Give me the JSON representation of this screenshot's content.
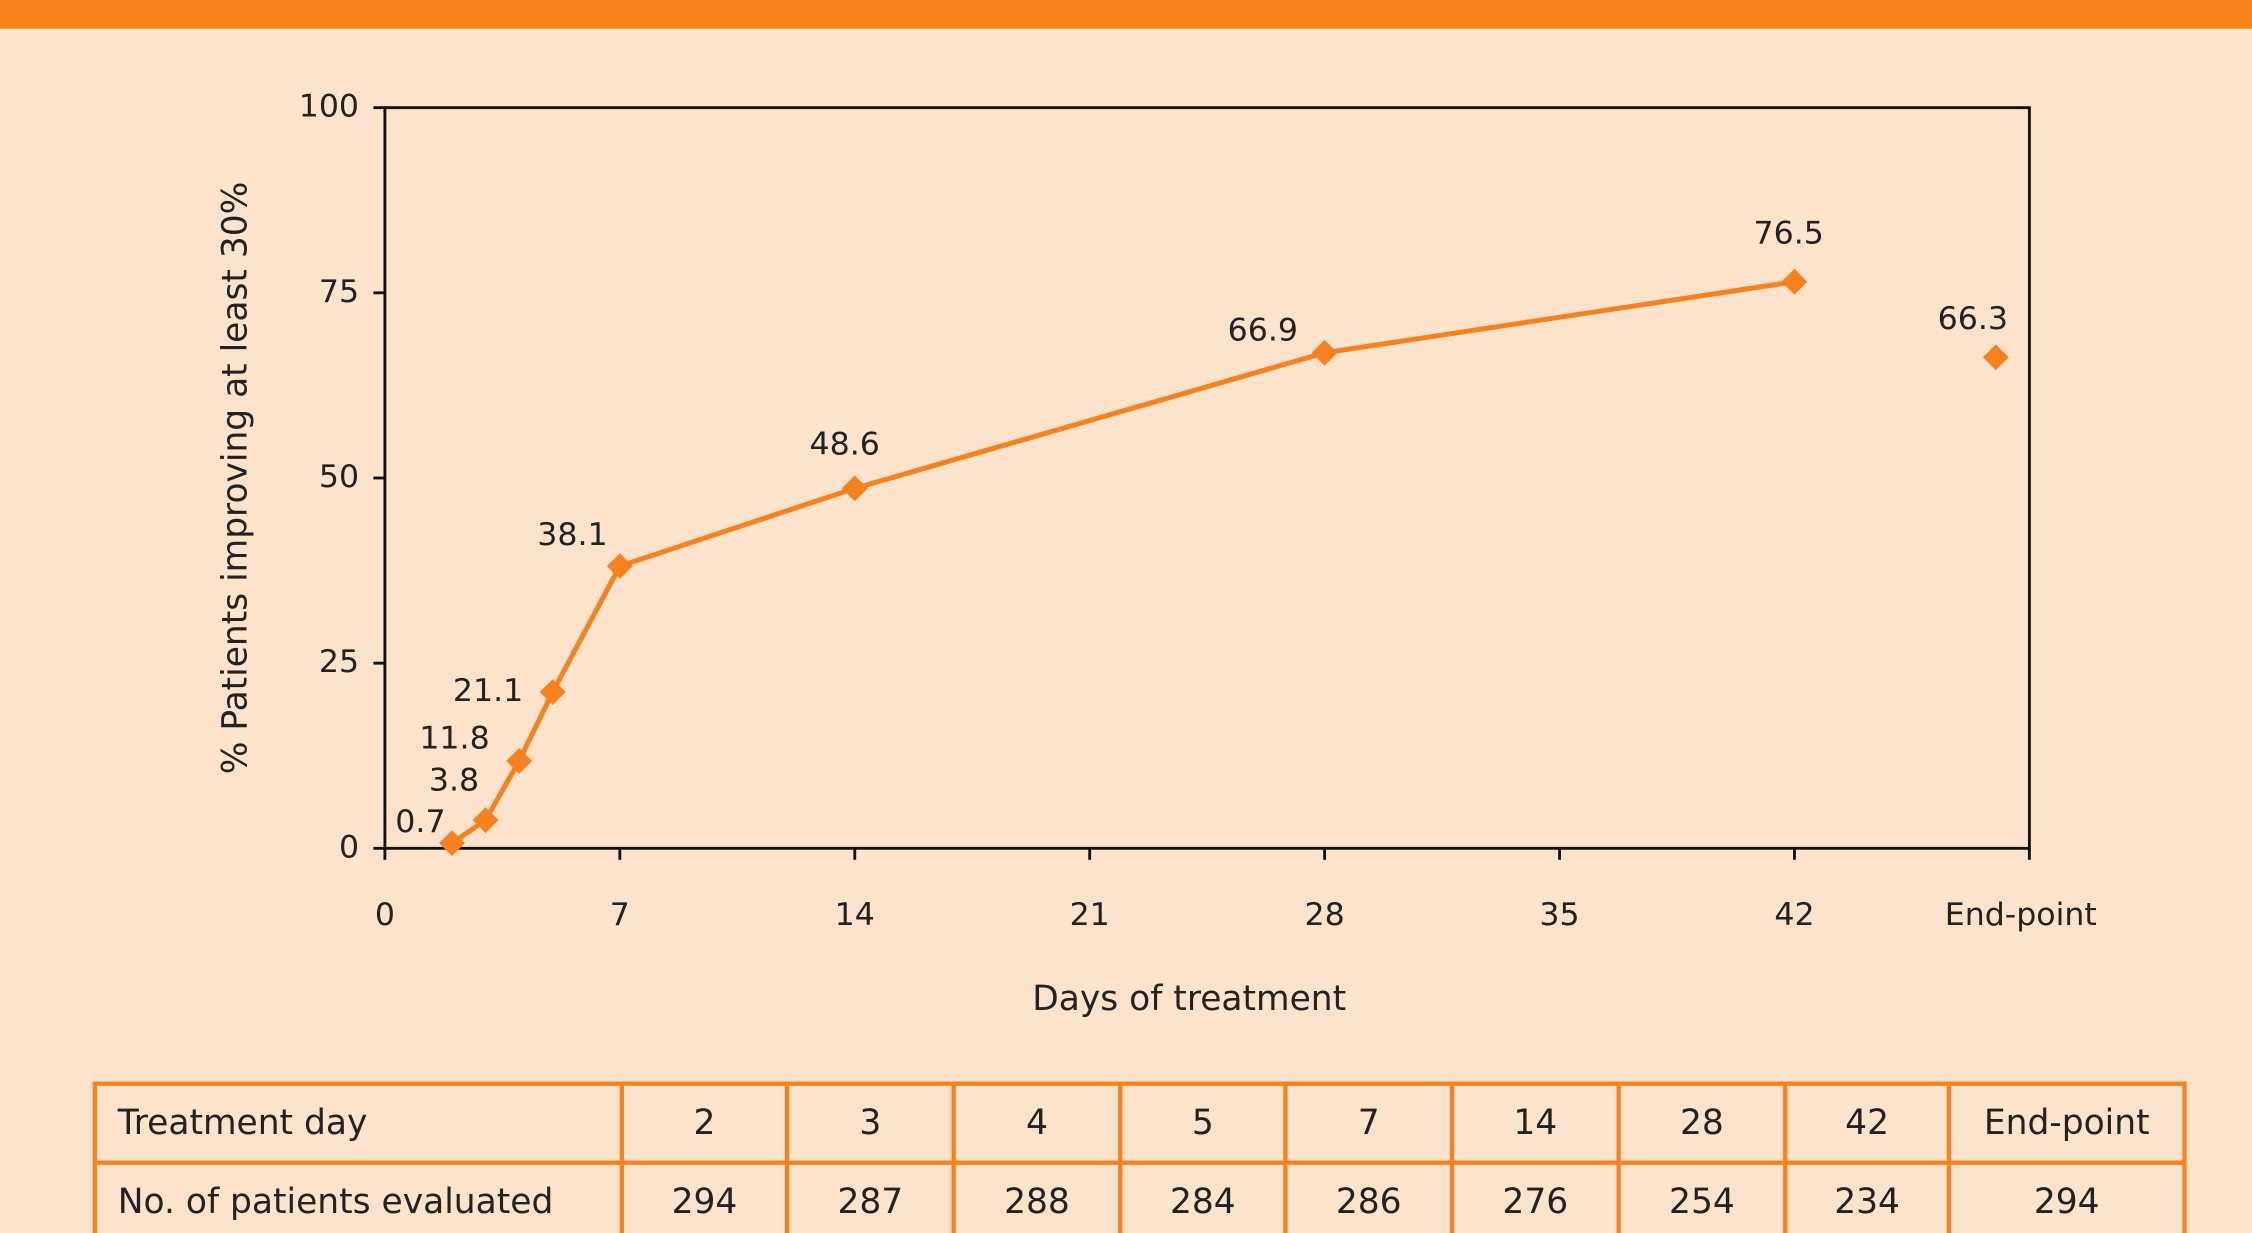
{
  "chart_data": {
    "type": "line",
    "x_label": "Days of treatment",
    "y_label": "% Patients improving at least 30%",
    "x": [
      2,
      3,
      4,
      5,
      7,
      14,
      28,
      42
    ],
    "values": [
      0.7,
      3.8,
      11.8,
      21.1,
      38.1,
      48.6,
      66.9,
      76.5
    ],
    "endpoint_x": 48,
    "endpoint_value": 66.3,
    "color": "#f5821f",
    "xlim": [
      0,
      49
    ],
    "xticks": [
      0,
      7,
      14,
      21,
      28,
      35,
      42,
      {
        "value": 49,
        "label": "End-point"
      }
    ],
    "ylim": [
      0,
      100
    ],
    "yticks": [
      0,
      25,
      50,
      75,
      100
    ]
  },
  "table": {
    "rows": [
      [
        "Treatment day",
        "2",
        "3",
        "4",
        "5",
        "7",
        "14",
        "28",
        "42",
        "End-point"
      ],
      [
        "No. of patients evaluated",
        "294",
        "287",
        "288",
        "284",
        "286",
        "276",
        "254",
        "234",
        "294"
      ]
    ]
  }
}
